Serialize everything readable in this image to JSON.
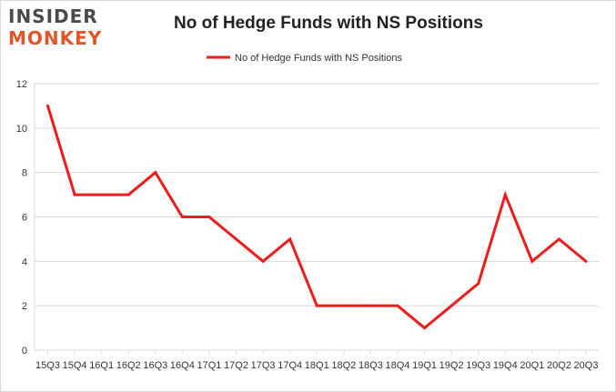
{
  "logo": {
    "line1": "INSIDER",
    "line2": "MONKEY"
  },
  "colors": {
    "series": "#ee1c1c",
    "grid": "#d9d9d9",
    "logo_dark": "#4a4a4a",
    "logo_accent": "#e0552a"
  },
  "chart_data": {
    "type": "line",
    "title": "No of Hedge Funds with NS Positions",
    "xlabel": "",
    "ylabel": "",
    "ylim": [
      0,
      12
    ],
    "yticks": [
      0,
      2,
      4,
      6,
      8,
      10,
      12
    ],
    "grid": true,
    "legend_position": "top-center",
    "x": [
      "15Q3",
      "15Q4",
      "16Q1",
      "16Q2",
      "16Q3",
      "16Q4",
      "17Q1",
      "17Q2",
      "17Q3",
      "17Q4",
      "18Q1",
      "18Q2",
      "18Q3",
      "18Q4",
      "19Q1",
      "19Q2",
      "19Q3",
      "19Q4",
      "20Q1",
      "20Q2",
      "20Q3"
    ],
    "series": [
      {
        "name": "No of Hedge Funds with NS Positions",
        "values": [
          11,
          7,
          7,
          7,
          8,
          6,
          6,
          5,
          4,
          5,
          2,
          2,
          2,
          2,
          1,
          2,
          3,
          7,
          4,
          5,
          4
        ]
      }
    ]
  }
}
